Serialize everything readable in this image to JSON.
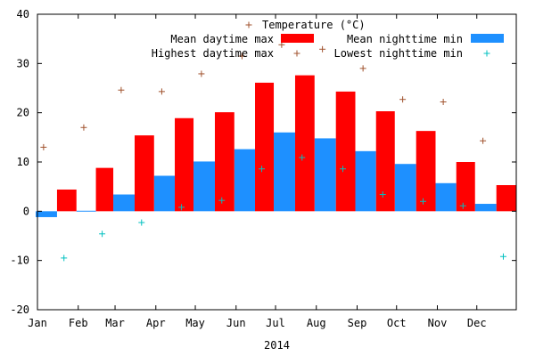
{
  "chart_data": {
    "type": "bar",
    "title": "",
    "xlabel": "2014",
    "ylabel": "",
    "ylim": [
      -20,
      40
    ],
    "xlim": [
      "2014-01-01",
      "2014-12-31"
    ],
    "yticks": [
      -20,
      -10,
      0,
      10,
      20,
      30,
      40
    ],
    "grid": false,
    "legend_position": "top-right",
    "legend_title": "Temperature (°C)",
    "months": [
      {
        "label": "Jan",
        "date": "2014-01-01"
      },
      {
        "label": "Feb",
        "date": "2014-02-01"
      },
      {
        "label": "Mar",
        "date": "2014-03-01"
      },
      {
        "label": "Apr",
        "date": "2014-04-01"
      },
      {
        "label": "May",
        "date": "2014-05-01"
      },
      {
        "label": "Jun",
        "date": "2014-06-01"
      },
      {
        "label": "Jul",
        "date": "2014-07-01"
      },
      {
        "label": "Aug",
        "date": "2014-08-01"
      },
      {
        "label": "Sep",
        "date": "2014-09-01"
      },
      {
        "label": "Oct",
        "date": "2014-10-01"
      },
      {
        "label": "Nov",
        "date": "2014-11-01"
      },
      {
        "label": "Dec",
        "date": "2014-12-01"
      }
    ],
    "series": [
      {
        "name": "Mean daytime max",
        "kind": "bar",
        "color": "#ff0000",
        "values": [
          4.4,
          8.8,
          15.4,
          18.9,
          20.1,
          26.1,
          27.6,
          24.3,
          20.3,
          16.3,
          10.0,
          5.3
        ]
      },
      {
        "name": "Mean nighttime min",
        "kind": "bar",
        "color": "#1e90ff",
        "values": [
          -1.2,
          0.1,
          3.4,
          7.2,
          10.1,
          12.6,
          16.0,
          14.8,
          12.2,
          9.6,
          5.7,
          1.5
        ]
      },
      {
        "name": "Highest daytime max",
        "kind": "point",
        "marker": "+",
        "color": "#a0522d",
        "values": [
          13.0,
          17.0,
          24.6,
          24.3,
          27.9,
          31.5,
          33.8,
          32.9,
          29.0,
          22.7,
          22.2,
          14.3
        ]
      },
      {
        "name": "Lowest nighttime min",
        "kind": "point",
        "marker": "+",
        "color": "#00c0c0",
        "values": [
          -9.5,
          -4.6,
          -2.3,
          0.8,
          2.2,
          8.6,
          10.9,
          8.6,
          3.4,
          2.0,
          1.1,
          -9.2
        ]
      }
    ]
  }
}
